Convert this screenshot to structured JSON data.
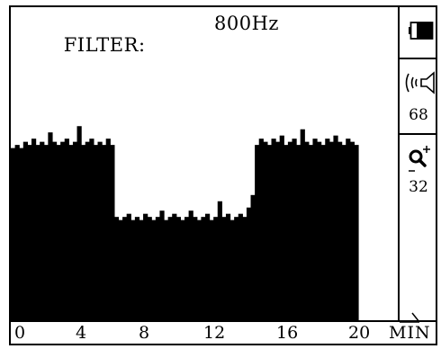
{
  "header": {
    "filter_label": "FILTER:",
    "filter_value": "800Hz"
  },
  "status": {
    "battery_icon": "battery-icon",
    "volume_icon": "speaker-icon",
    "volume_value": "68",
    "zoom_icon": "zoom-icon",
    "zoom_value": "32"
  },
  "chart_data": {
    "type": "bar",
    "x": {
      "min": 0,
      "max": 20,
      "ticks": [
        "0",
        "4",
        "8",
        "12",
        "16",
        "20"
      ],
      "unit": "MIN"
    },
    "y_range": [
      0,
      100
    ],
    "values": [
      55,
      56,
      55,
      57,
      56,
      58,
      56,
      57,
      56,
      60,
      57,
      56,
      57,
      58,
      56,
      57,
      62,
      56,
      57,
      58,
      56,
      57,
      56,
      58,
      56,
      33,
      32,
      33,
      34,
      32,
      33,
      32,
      34,
      33,
      32,
      33,
      35,
      32,
      33,
      34,
      33,
      32,
      33,
      35,
      33,
      32,
      33,
      34,
      32,
      33,
      38,
      33,
      34,
      32,
      33,
      34,
      33,
      36,
      40,
      56,
      58,
      57,
      56,
      58,
      57,
      59,
      56,
      57,
      58,
      56,
      61,
      57,
      56,
      58,
      57,
      56,
      58,
      57,
      59,
      57,
      56,
      58,
      57,
      56
    ]
  }
}
